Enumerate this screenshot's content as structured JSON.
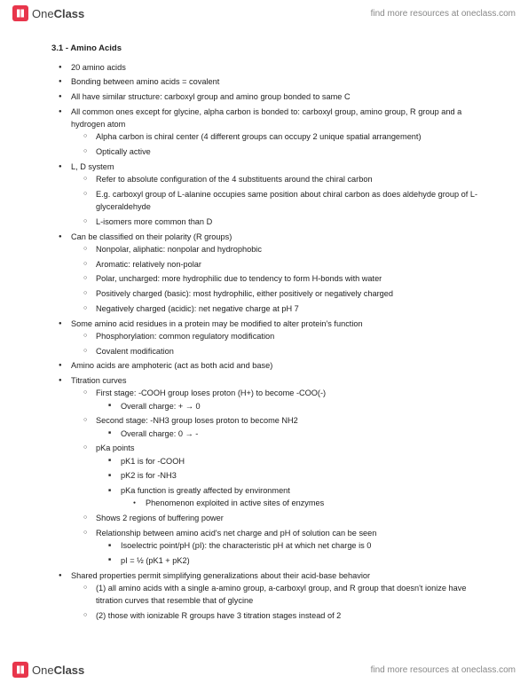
{
  "brand": {
    "one": "One",
    "class": "Class"
  },
  "resources_link": "find more resources at oneclass.com",
  "section": {
    "number": "3.1",
    "sep": " - ",
    "title": "Amino Acids"
  },
  "items": [
    {
      "lvl": 1,
      "t": "20 amino acids"
    },
    {
      "lvl": 1,
      "t": "Bonding between amino acids = covalent"
    },
    {
      "lvl": 1,
      "t": "All have similar structure: carboxyl group and amino group bonded to same C"
    },
    {
      "lvl": 1,
      "t": "All common ones except for glycine, alpha carbon is bonded to: carboxyl group, amino group, R group and a hydrogen atom"
    },
    {
      "lvl": 2,
      "t": "Alpha carbon is chiral center (4 different groups can occupy 2 unique spatial arrangement)"
    },
    {
      "lvl": 2,
      "t": "Optically active"
    },
    {
      "lvl": 1,
      "t": "L, D system"
    },
    {
      "lvl": 2,
      "t": "Refer to absolute configuration of the 4 substituents around the chiral carbon"
    },
    {
      "lvl": 2,
      "t": "E.g. carboxyl group of L-alanine occupies same position about chiral carbon as does aldehyde group of L-glyceraldehyde"
    },
    {
      "lvl": 2,
      "t": "L-isomers more common than D"
    },
    {
      "lvl": 1,
      "t": "Can be classified on their polarity (R groups)"
    },
    {
      "lvl": 2,
      "t": "Nonpolar, aliphatic: nonpolar and hydrophobic"
    },
    {
      "lvl": 2,
      "t": "Aromatic: relatively non-polar"
    },
    {
      "lvl": 2,
      "t": "Polar, uncharged: more hydrophilic due to tendency to form H-bonds with water"
    },
    {
      "lvl": 2,
      "t": "Positively charged (basic): most hydrophilic, either positively or negatively charged"
    },
    {
      "lvl": 2,
      "t": "Negatively charged (acidic): net negative charge at pH 7"
    },
    {
      "lvl": 1,
      "t": "Some amino acid residues in a protein may be modified to alter protein's function"
    },
    {
      "lvl": 2,
      "t": "Phosphorylation: common regulatory modification"
    },
    {
      "lvl": 2,
      "t": "Covalent modification"
    },
    {
      "lvl": 1,
      "t": "Amino acids are amphoteric (act as both acid and base)"
    },
    {
      "lvl": 1,
      "t": "Titration curves"
    },
    {
      "lvl": 2,
      "t": "First stage: -COOH group loses proton (H+) to become -COO(-)"
    },
    {
      "lvl": 3,
      "t": "Overall charge: + → 0"
    },
    {
      "lvl": 2,
      "t": "Second stage: -NH3 group loses proton to become NH2"
    },
    {
      "lvl": 3,
      "t": "Overall charge: 0 → -"
    },
    {
      "lvl": 2,
      "t": "pKa points"
    },
    {
      "lvl": 3,
      "t": "pK1 is for -COOH"
    },
    {
      "lvl": 3,
      "t": "pK2 is for -NH3"
    },
    {
      "lvl": 3,
      "t": "pKa function is greatly affected by environment"
    },
    {
      "lvl": 4,
      "t": "Phenomenon exploited in active sites of enzymes"
    },
    {
      "lvl": 2,
      "t": "Shows 2 regions of buffering power"
    },
    {
      "lvl": 2,
      "t": "Relationship between amino acid's net charge and pH of solution can be seen"
    },
    {
      "lvl": 3,
      "t": "Isoelectric point/pH (pI): the characteristic pH at which net charge is 0"
    },
    {
      "lvl": 3,
      "t": "pI = ½ (pK1 + pK2)"
    },
    {
      "lvl": 1,
      "t": "Shared properties permit simplifying generalizations about their acid-base behavior"
    },
    {
      "lvl": 2,
      "t": "(1) all amino acids with a single a-amino group, a-carboxyl group, and R group that doesn't ionize have titration curves that resemble that of glycine"
    },
    {
      "lvl": 2,
      "t": "(2) those with ionizable R groups have 3 titration stages instead of 2"
    }
  ]
}
